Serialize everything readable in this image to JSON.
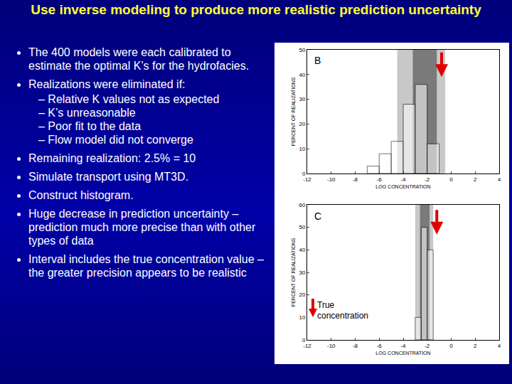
{
  "slide": {
    "title": "Use inverse modeling to produce more realistic prediction uncertainty",
    "bullets": [
      {
        "text": "The 400 models were each calibrated to estimate the optimal K’s for the hydrofacies."
      },
      {
        "text": "Realizations were eliminated if:",
        "sub": [
          "Relative K values not as expected",
          "K’s unreasonable",
          "Poor fit to the data",
          "Flow model did not converge"
        ]
      },
      {
        "text": "Remaining realization: 2.5% = 10"
      },
      {
        "text": "Simulate transport using MT3D."
      },
      {
        "text": "Construct histogram."
      },
      {
        "text": "Huge decrease in prediction uncertainty – prediction much more precise than with other types of data"
      },
      {
        "text": "Interval includes the true concentration value – the greater precision appears to be realistic"
      }
    ],
    "key": "True concentration"
  },
  "chart_data": [
    {
      "type": "histogram",
      "annotations": [
        "B"
      ],
      "x_label": "LOG CONCENTRATION",
      "y_label": "PERCENT OF REALIZATIONS",
      "bins": [
        -7,
        -6,
        -5,
        -4,
        -3,
        -2,
        -1
      ],
      "values": [
        3,
        8,
        13,
        28,
        36,
        12
      ],
      "color": "#ffffff",
      "xlim": [
        -12,
        4
      ],
      "xticks": [
        -12,
        -10,
        -8,
        -6,
        -4,
        -2,
        0,
        2,
        4
      ],
      "ylim": [
        0,
        50
      ],
      "yticks": [
        0,
        10,
        20,
        30,
        40,
        50
      ],
      "grid": false,
      "true_value": -0.8,
      "shaded_ranges": [
        {
          "from": -4.5,
          "to": -0.5,
          "color": "#c8c8c8"
        },
        {
          "from": -3.2,
          "to": -1.2,
          "color": "#7a7a7a"
        }
      ]
    },
    {
      "type": "histogram",
      "annotations": [
        "C"
      ],
      "x_label": "LOG CONCENTRATION",
      "y_label": "PERCENT OF REALIZATIONS",
      "bins": [
        -3,
        -2.5,
        -2,
        -1.5
      ],
      "values": [
        10,
        50,
        40
      ],
      "color": "#ffffff",
      "xlim": [
        -12,
        4
      ],
      "xticks": [
        -12,
        -10,
        -8,
        -6,
        -4,
        -2,
        0,
        2,
        4
      ],
      "ylim": [
        0,
        60
      ],
      "yticks": [
        0,
        10,
        20,
        30,
        40,
        50,
        60
      ],
      "grid": false,
      "true_value": -1.2,
      "shaded_ranges": [
        {
          "from": -3,
          "to": -1.5,
          "color": "#c8c8c8"
        },
        {
          "from": -2.6,
          "to": -1.8,
          "color": "#7a7a7a"
        }
      ]
    }
  ]
}
